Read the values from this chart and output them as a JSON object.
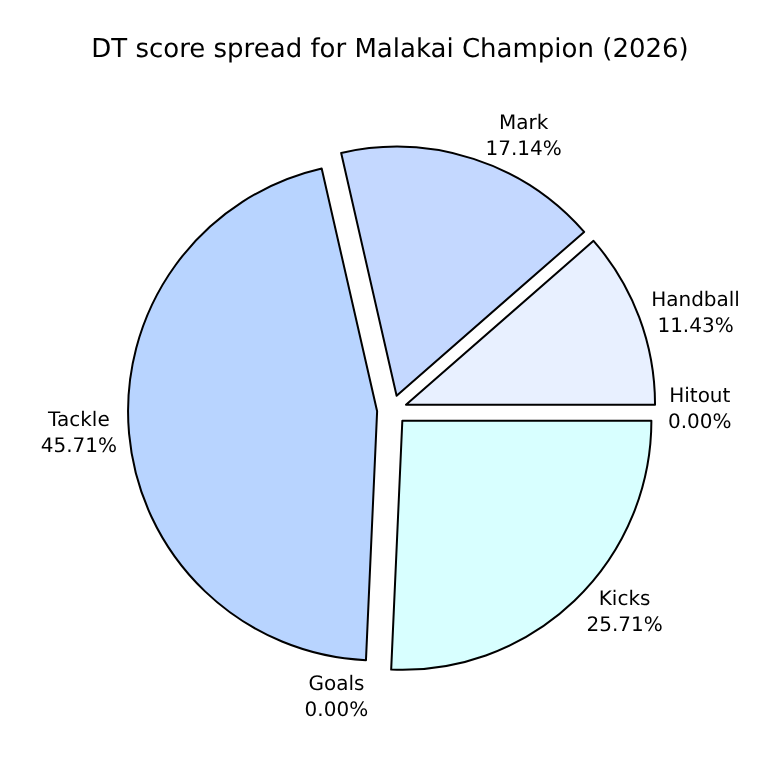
{
  "chart_data": {
    "type": "pie",
    "title": "DT score spread for Malakai Champion (2026)",
    "categories": [
      "Hitout",
      "Kicks",
      "Goals",
      "Tackle",
      "Mark",
      "Handball"
    ],
    "values": [
      0.0,
      25.71,
      0.0,
      45.71,
      17.14,
      11.43
    ],
    "value_labels": [
      "0.00%",
      "25.71%",
      "0.00%",
      "45.71%",
      "17.14%",
      "11.43%"
    ],
    "colors": [
      "#e0e8ff",
      "#d8ffff",
      "#c8e0ff",
      "#b8d4ff",
      "#c4d8ff",
      "#e8f0ff"
    ]
  }
}
